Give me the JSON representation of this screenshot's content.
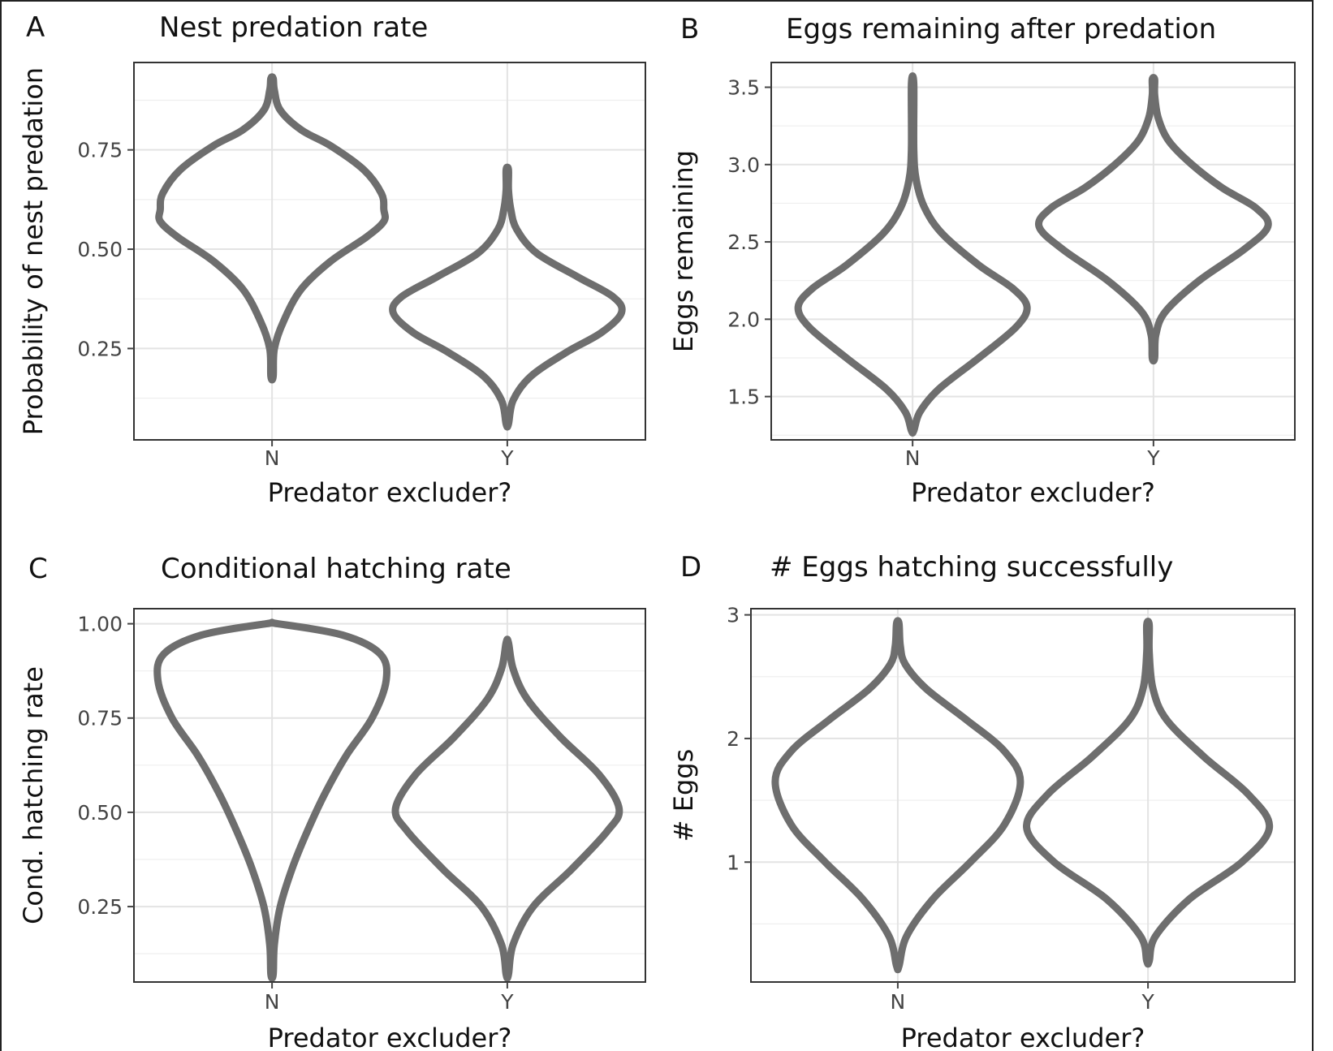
{
  "chart_data": [
    {
      "type": "violin",
      "panel_label": "A",
      "title": "Nest predation rate",
      "xlabel": "Predator excluder?",
      "ylabel": "Probability of nest predation",
      "categories": [
        "N",
        "Y"
      ],
      "ylim": [
        0.02,
        0.97
      ],
      "yticks": [
        0.25,
        0.5,
        0.75
      ],
      "ytick_labels": [
        "0.25",
        "0.50",
        "0.75"
      ],
      "grid": true,
      "style": {
        "stroke": "#6e6e6e"
      },
      "violins": [
        {
          "category": "N",
          "profile": [
            [
              0.18,
              0.01
            ],
            [
              0.25,
              0.02
            ],
            [
              0.32,
              0.1
            ],
            [
              0.4,
              0.25
            ],
            [
              0.47,
              0.5
            ],
            [
              0.53,
              0.8
            ],
            [
              0.57,
              0.95
            ],
            [
              0.6,
              0.95
            ],
            [
              0.64,
              0.93
            ],
            [
              0.7,
              0.78
            ],
            [
              0.76,
              0.5
            ],
            [
              0.8,
              0.25
            ],
            [
              0.85,
              0.07
            ],
            [
              0.9,
              0.02
            ],
            [
              0.93,
              0.01
            ]
          ]
        },
        {
          "category": "Y",
          "profile": [
            [
              0.06,
              0.01
            ],
            [
              0.12,
              0.05
            ],
            [
              0.18,
              0.2
            ],
            [
              0.24,
              0.5
            ],
            [
              0.29,
              0.8
            ],
            [
              0.34,
              0.97
            ],
            [
              0.38,
              0.9
            ],
            [
              0.43,
              0.6
            ],
            [
              0.49,
              0.25
            ],
            [
              0.55,
              0.08
            ],
            [
              0.6,
              0.03
            ],
            [
              0.65,
              0.01
            ],
            [
              0.7,
              0.01
            ]
          ]
        }
      ]
    },
    {
      "type": "violin",
      "panel_label": "B",
      "title": "Eggs remaining after predation",
      "xlabel": "Predator excluder?",
      "ylabel": "Eggs remaining",
      "categories": [
        "N",
        "Y"
      ],
      "ylim": [
        1.22,
        3.66
      ],
      "yticks": [
        1.5,
        2.0,
        2.5,
        3.0,
        3.5
      ],
      "ytick_labels": [
        "1.5",
        "2.0",
        "2.5",
        "3.0",
        "3.5"
      ],
      "grid": true,
      "style": {
        "stroke": "#6e6e6e"
      },
      "violins": [
        {
          "category": "N",
          "profile": [
            [
              1.28,
              0.01
            ],
            [
              1.4,
              0.06
            ],
            [
              1.55,
              0.22
            ],
            [
              1.75,
              0.55
            ],
            [
              1.95,
              0.86
            ],
            [
              2.08,
              0.95
            ],
            [
              2.2,
              0.83
            ],
            [
              2.35,
              0.55
            ],
            [
              2.55,
              0.25
            ],
            [
              2.72,
              0.1
            ],
            [
              2.9,
              0.03
            ],
            [
              3.1,
              0.01
            ],
            [
              3.52,
              0.01
            ]
          ]
        },
        {
          "category": "Y",
          "profile": [
            [
              1.75,
              0.01
            ],
            [
              1.9,
              0.02
            ],
            [
              2.05,
              0.1
            ],
            [
              2.25,
              0.38
            ],
            [
              2.45,
              0.75
            ],
            [
              2.6,
              0.95
            ],
            [
              2.72,
              0.85
            ],
            [
              2.85,
              0.57
            ],
            [
              3.0,
              0.32
            ],
            [
              3.15,
              0.13
            ],
            [
              3.3,
              0.04
            ],
            [
              3.45,
              0.01
            ],
            [
              3.55,
              0.01
            ]
          ]
        }
      ]
    },
    {
      "type": "violin",
      "panel_label": "C",
      "title": "Conditional hatching rate",
      "xlabel": "Predator excluder?",
      "ylabel": "Cond. hatching rate",
      "categories": [
        "N",
        "Y"
      ],
      "ylim": [
        0.05,
        1.04
      ],
      "yticks": [
        0.25,
        0.5,
        0.75,
        1.0
      ],
      "ytick_labels": [
        "0.25",
        "0.50",
        "0.75",
        "1.00"
      ],
      "grid": true,
      "style": {
        "stroke": "#6e6e6e"
      },
      "violins": [
        {
          "category": "N",
          "profile": [
            [
              0.07,
              0.01
            ],
            [
              0.15,
              0.02
            ],
            [
              0.25,
              0.07
            ],
            [
              0.35,
              0.17
            ],
            [
              0.45,
              0.3
            ],
            [
              0.55,
              0.45
            ],
            [
              0.65,
              0.63
            ],
            [
              0.75,
              0.85
            ],
            [
              0.85,
              0.97
            ],
            [
              0.92,
              0.92
            ],
            [
              0.97,
              0.6
            ],
            [
              1.0,
              0.05
            ]
          ]
        },
        {
          "category": "Y",
          "profile": [
            [
              0.07,
              0.01
            ],
            [
              0.15,
              0.05
            ],
            [
              0.25,
              0.22
            ],
            [
              0.35,
              0.55
            ],
            [
              0.45,
              0.85
            ],
            [
              0.51,
              0.95
            ],
            [
              0.6,
              0.78
            ],
            [
              0.7,
              0.45
            ],
            [
              0.8,
              0.17
            ],
            [
              0.88,
              0.05
            ],
            [
              0.95,
              0.01
            ]
          ]
        }
      ]
    },
    {
      "type": "violin",
      "panel_label": "D",
      "title": "# Eggs hatching successfully",
      "xlabel": "Predator excluder?",
      "ylabel": "# Eggs",
      "categories": [
        "N",
        "Y"
      ],
      "ylim": [
        0.03,
        3.05
      ],
      "yticks": [
        1,
        2,
        3
      ],
      "ytick_labels": [
        "1",
        "2",
        "3"
      ],
      "grid": true,
      "style": {
        "stroke": "#6e6e6e"
      },
      "violins": [
        {
          "category": "N",
          "profile": [
            [
              0.16,
              0.01
            ],
            [
              0.4,
              0.07
            ],
            [
              0.7,
              0.28
            ],
            [
              1.0,
              0.58
            ],
            [
              1.3,
              0.85
            ],
            [
              1.65,
              0.98
            ],
            [
              1.9,
              0.85
            ],
            [
              2.15,
              0.55
            ],
            [
              2.4,
              0.23
            ],
            [
              2.6,
              0.06
            ],
            [
              2.75,
              0.02
            ],
            [
              2.93,
              0.01
            ]
          ]
        },
        {
          "category": "Y",
          "profile": [
            [
              0.2,
              0.01
            ],
            [
              0.4,
              0.06
            ],
            [
              0.7,
              0.33
            ],
            [
              1.0,
              0.75
            ],
            [
              1.28,
              0.97
            ],
            [
              1.55,
              0.8
            ],
            [
              1.85,
              0.45
            ],
            [
              2.15,
              0.15
            ],
            [
              2.4,
              0.04
            ],
            [
              2.7,
              0.01
            ],
            [
              2.92,
              0.01
            ]
          ]
        }
      ]
    }
  ]
}
